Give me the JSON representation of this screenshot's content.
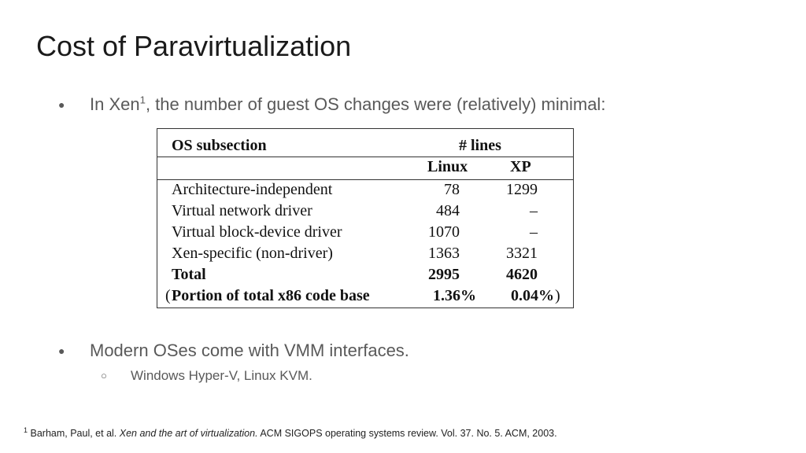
{
  "slide": {
    "title": "Cost of Paravirtualization"
  },
  "bullets": {
    "b1_dot": "●",
    "b1_pre": "In Xen",
    "b1_sup": "1",
    "b1_post": ", the number of guest OS changes were (relatively) minimal:",
    "b2_dot": "●",
    "b2_text": "Modern OSes come with VMM interfaces.",
    "sub_ring": "○",
    "sub_text": "Windows Hyper-V, Linux KVM."
  },
  "table": {
    "header_col": "OS subsection",
    "header_group": "# lines",
    "header_linux": "Linux",
    "header_xp": "XP",
    "rows": [
      {
        "label": "Architecture-independent",
        "linux": "78",
        "xp": "1299"
      },
      {
        "label": "Virtual network driver",
        "linux": "484",
        "xp": "–"
      },
      {
        "label": "Virtual block-device driver",
        "linux": "1070",
        "xp": "–"
      },
      {
        "label": "Xen-specific (non-driver)",
        "linux": "1363",
        "xp": "3321"
      }
    ],
    "total": {
      "label": "Total",
      "linux": "2995",
      "xp": "4620"
    },
    "portion": {
      "open_paren": "(",
      "label": "Portion of total x86 code base",
      "linux": "1.36%",
      "xp": "0.04%",
      "close_paren": ")"
    }
  },
  "footnote": {
    "sup": "1",
    "authors": " Barham, Paul, et al. ",
    "title": "Xen and the art of virtualization.",
    "rest": " ACM SIGOPS operating systems review. Vol. 37. No. 5. ACM, 2003."
  }
}
